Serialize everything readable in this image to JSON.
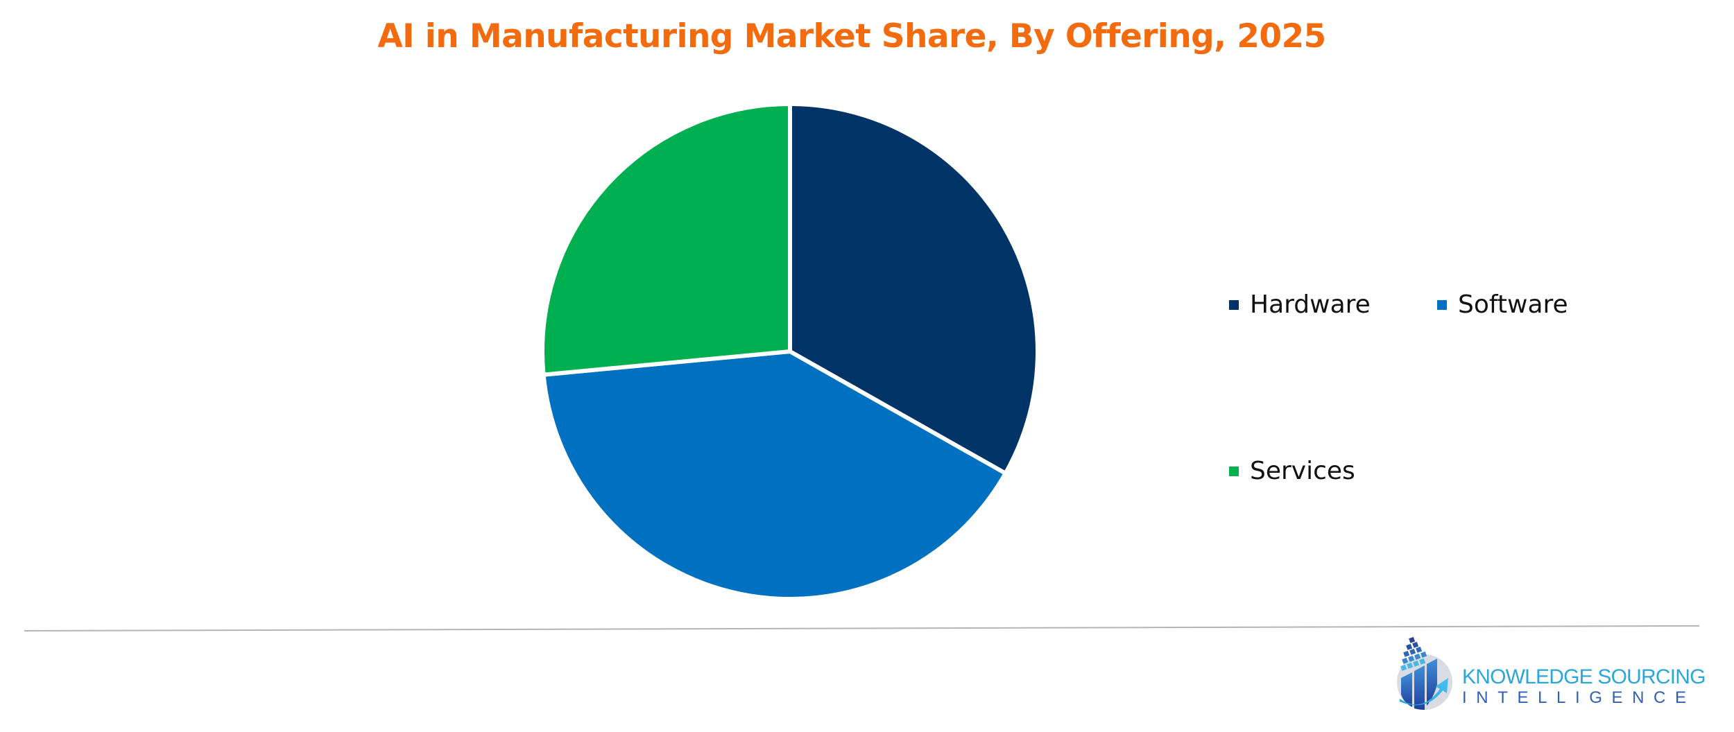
{
  "title": "AI in Manufacturing Market Share, By Offering, 2025",
  "colors": {
    "title": "#F26B0F",
    "hardware": "#003366",
    "software": "#0070C0",
    "services": "#00B050",
    "divider": "#b4b4b4",
    "logo_primary": "#2BA6D9",
    "logo_secondary": "#2f5fb3"
  },
  "chart_data": {
    "type": "pie",
    "title": "AI in Manufacturing Market Share, By Offering, 2025",
    "categories": [
      "Hardware",
      "Software",
      "Services"
    ],
    "values": [
      33.2,
      40.3,
      26.5
    ],
    "unit": "% (estimated from slice angles, no data labels shown)",
    "start_angle": "12 o'clock, clockwise",
    "colors": [
      "#003366",
      "#0070C0",
      "#00B050"
    ],
    "legend_position": "right",
    "data_labels": false
  },
  "legend": {
    "items": [
      {
        "label": "Hardware",
        "color": "#003366"
      },
      {
        "label": "Software",
        "color": "#0070C0"
      },
      {
        "label": "Services",
        "color": "#00B050"
      }
    ]
  },
  "logo": {
    "line1": "KNOWLEDGE SOURCING",
    "line2": "INTELLIGENCE",
    "icon": "bar-chart-arrow-logo-icon"
  }
}
